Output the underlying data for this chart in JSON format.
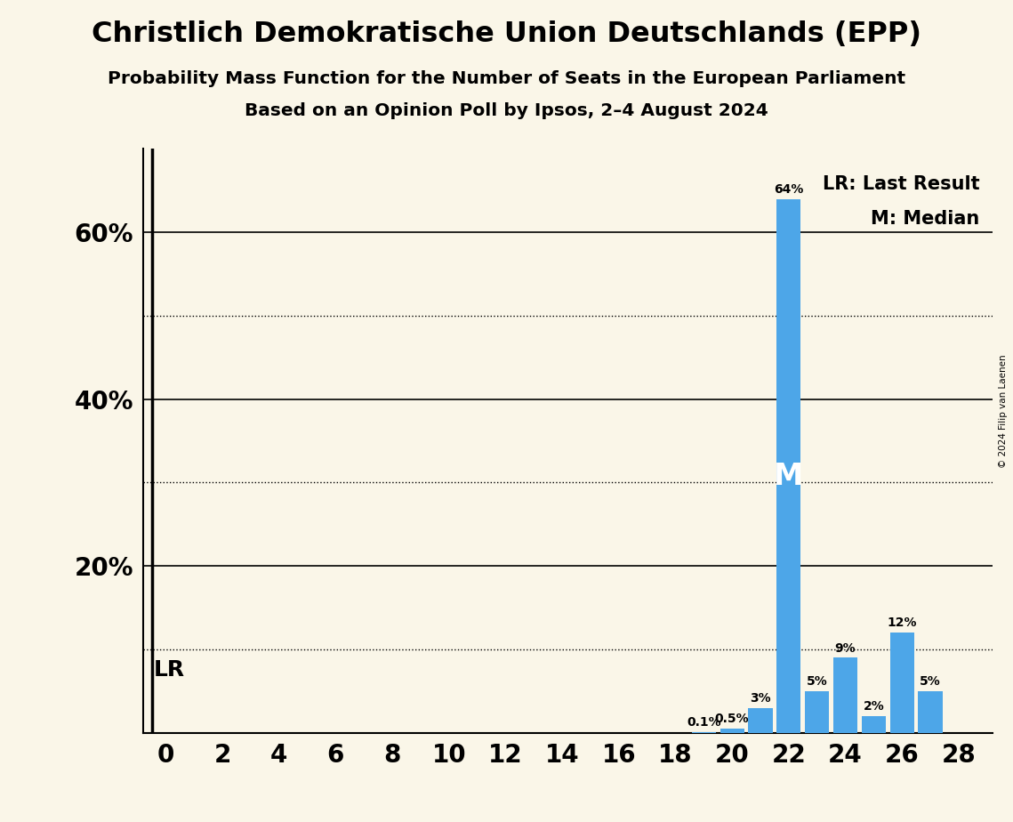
{
  "title": "Christlich Demokratische Union Deutschlands (EPP)",
  "subtitle1": "Probability Mass Function for the Number of Seats in the European Parliament",
  "subtitle2": "Based on an Opinion Poll by Ipsos, 2–4 August 2024",
  "copyright": "© 2024 Filip van Laenen",
  "background_color": "#faf6e8",
  "bar_color": "#4da6e8",
  "seats": [
    0,
    1,
    2,
    3,
    4,
    5,
    6,
    7,
    8,
    9,
    10,
    11,
    12,
    13,
    14,
    15,
    16,
    17,
    18,
    19,
    20,
    21,
    22,
    23,
    24,
    25,
    26,
    27,
    28
  ],
  "probs": [
    0,
    0,
    0,
    0,
    0,
    0,
    0,
    0,
    0,
    0,
    0,
    0,
    0,
    0,
    0,
    0,
    0,
    0,
    0,
    0.1,
    0.5,
    3,
    64,
    5,
    9,
    2,
    12,
    5,
    0
  ],
  "ylim": [
    0,
    70
  ],
  "yticks": [
    0,
    10,
    20,
    30,
    40,
    50,
    60,
    70
  ],
  "solid_lines": [
    20,
    40,
    60
  ],
  "dotted_lines": [
    10,
    30,
    50
  ],
  "median_seat": 22,
  "lr_seat": 0,
  "lr_label": "LR",
  "median_label": "M",
  "legend_lr": "LR: Last Result",
  "legend_m": "M: Median",
  "xlabel_seats": [
    0,
    2,
    4,
    6,
    8,
    10,
    12,
    14,
    16,
    18,
    20,
    22,
    24,
    26,
    28
  ]
}
